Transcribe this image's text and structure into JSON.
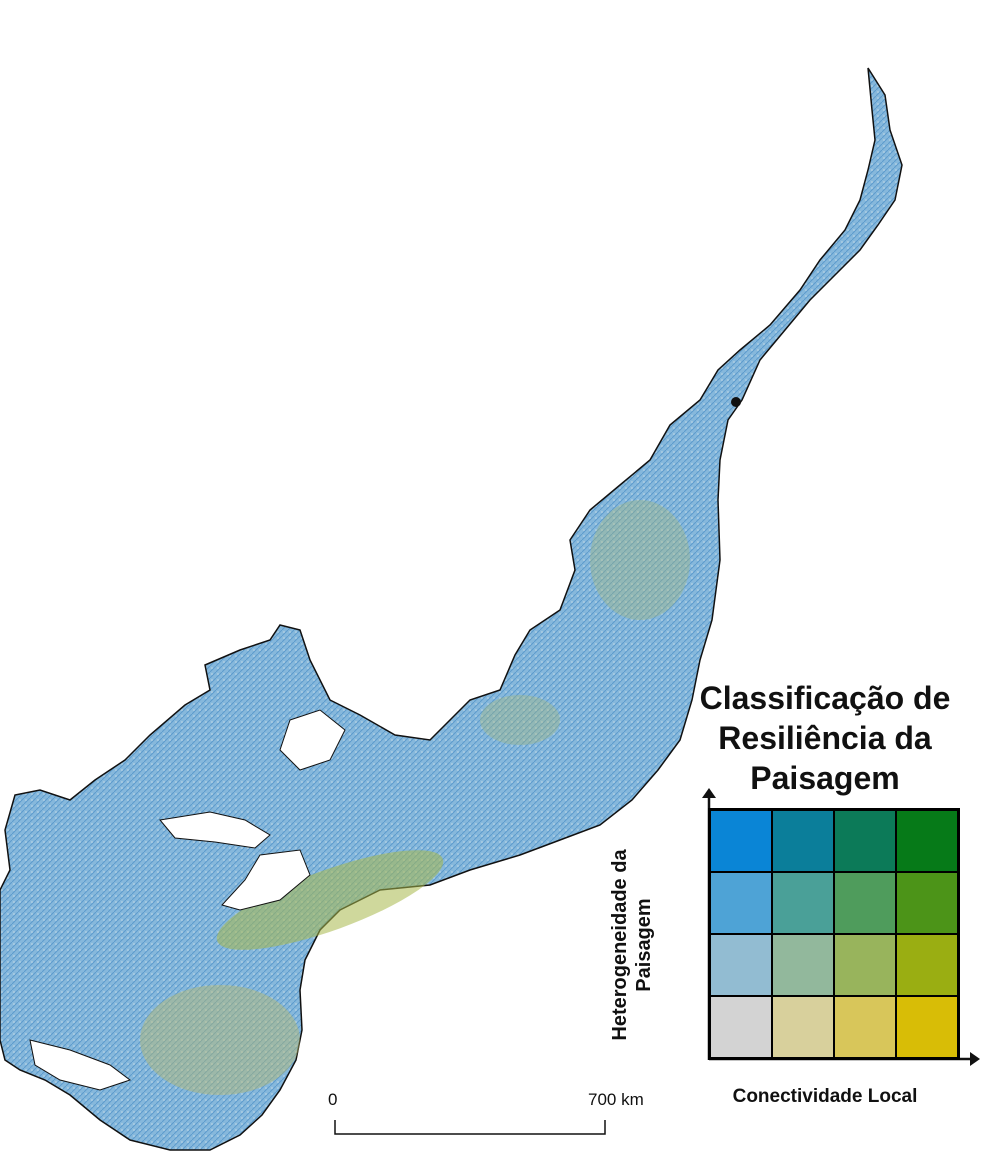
{
  "legend": {
    "title_lines": [
      "Classificação de",
      "Resiliência da",
      "Paisagem"
    ],
    "y_axis_lines": [
      "Heterogeneidade da",
      "Paisagem"
    ],
    "x_axis": "Conectividade Local",
    "colors": [
      [
        "#0a85d6",
        "#0b7e9a",
        "#0c7a58",
        "#067a18"
      ],
      [
        "#4ea3d6",
        "#4aa098",
        "#4f9c5c",
        "#4c9418"
      ],
      [
        "#92bcd2",
        "#92b89c",
        "#98b45c",
        "#9aae12"
      ],
      [
        "#d3d3d3",
        "#d8d09c",
        "#d8c65a",
        "#d8bd06"
      ]
    ]
  },
  "scale_bar": {
    "start_label": "0",
    "end_label": "700 km"
  },
  "map": {
    "region_fill": "#7fb3d8",
    "highlight_fill": "#b0b84a",
    "outline": "#111111"
  }
}
